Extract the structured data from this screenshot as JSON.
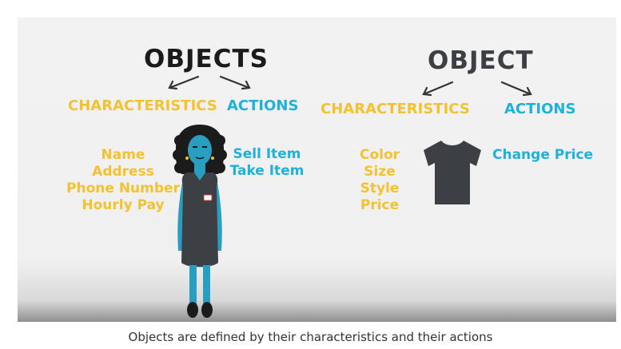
{
  "colors": {
    "black": "#1b1b1b",
    "dark_gray": "#3c4044",
    "yellow": "#f3c230",
    "cyan": "#1fb1d8",
    "arrow": "#333333",
    "skin": "#2a9ec0"
  },
  "left": {
    "title": "OBJECTS",
    "characteristics_label": "CHARACTERISTICS",
    "actions_label": "ACTIONS",
    "characteristics": [
      "Name",
      "Address",
      "Phone Number",
      "Hourly Pay"
    ],
    "actions": [
      "Sell Item",
      "Take Item"
    ],
    "illustration": "woman-employee-icon"
  },
  "right": {
    "title": "OBJECT",
    "characteristics_label": "CHARACTERISTICS",
    "actions_label": "ACTIONS",
    "characteristics": [
      "Color",
      "Size",
      "Style",
      "Price"
    ],
    "actions": [
      "Change Price"
    ],
    "illustration": "tshirt-icon"
  },
  "caption": "Objects are defined by their characteristics and their actions"
}
